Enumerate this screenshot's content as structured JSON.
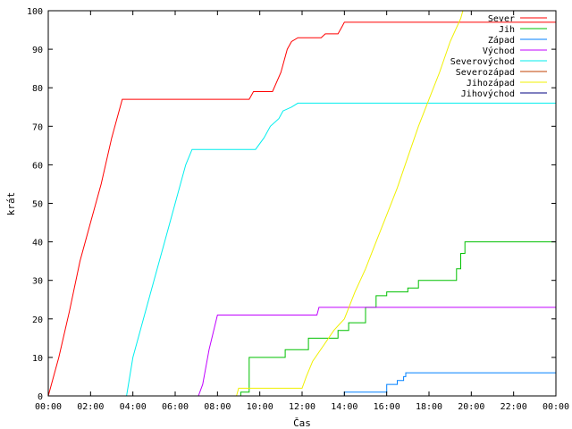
{
  "chart_data": {
    "type": "line",
    "xlabel": "Čas",
    "ylabel": "krát",
    "x_unit": "hours",
    "xlim": [
      0,
      24
    ],
    "ylim": [
      0,
      100
    ],
    "x_tick_labels": [
      "00:00",
      "02:00",
      "04:00",
      "06:00",
      "08:00",
      "10:00",
      "12:00",
      "14:00",
      "16:00",
      "18:00",
      "20:00",
      "22:00",
      "00:00"
    ],
    "y_tick_values": [
      0,
      10,
      20,
      30,
      40,
      50,
      60,
      70,
      80,
      90,
      100
    ],
    "grid": false,
    "legend_position": "top-right",
    "series": [
      {
        "name": "Sever",
        "color": "#ff0000",
        "shape": "linear",
        "points": [
          [
            0,
            0
          ],
          [
            0.5,
            10
          ],
          [
            1.0,
            22
          ],
          [
            1.5,
            35
          ],
          [
            2.0,
            45
          ],
          [
            2.5,
            55
          ],
          [
            3.0,
            67
          ],
          [
            3.5,
            77
          ],
          [
            9.5,
            77
          ],
          [
            9.7,
            79
          ],
          [
            10.6,
            79
          ],
          [
            11.0,
            84
          ],
          [
            11.3,
            90
          ],
          [
            11.5,
            92
          ],
          [
            11.8,
            93
          ],
          [
            12.0,
            93
          ],
          [
            12.9,
            93
          ],
          [
            13.1,
            94
          ],
          [
            13.7,
            94
          ],
          [
            13.9,
            96
          ],
          [
            14.0,
            97
          ],
          [
            24,
            97
          ]
        ]
      },
      {
        "name": "Jih",
        "color": "#00c000",
        "shape": "step",
        "points": [
          [
            0,
            0
          ],
          [
            9.0,
            0
          ],
          [
            9.1,
            1
          ],
          [
            9.5,
            10
          ],
          [
            11.1,
            10
          ],
          [
            11.2,
            12
          ],
          [
            12.0,
            12
          ],
          [
            12.3,
            15
          ],
          [
            13.5,
            15
          ],
          [
            13.7,
            17
          ],
          [
            14.0,
            17
          ],
          [
            14.2,
            19
          ],
          [
            14.8,
            19
          ],
          [
            15.0,
            23
          ],
          [
            15.5,
            26
          ],
          [
            16.0,
            27
          ],
          [
            16.8,
            27
          ],
          [
            17.0,
            28
          ],
          [
            17.3,
            28
          ],
          [
            17.5,
            30
          ],
          [
            19.0,
            30
          ],
          [
            19.3,
            33
          ],
          [
            19.5,
            37
          ],
          [
            19.7,
            40
          ],
          [
            24,
            40
          ]
        ]
      },
      {
        "name": "Západ",
        "color": "#0080ff",
        "shape": "step",
        "points": [
          [
            0,
            0
          ],
          [
            13.9,
            0
          ],
          [
            14.0,
            1
          ],
          [
            15.8,
            1
          ],
          [
            16.0,
            3
          ],
          [
            16.5,
            4
          ],
          [
            16.8,
            5
          ],
          [
            16.9,
            6
          ],
          [
            24,
            6
          ]
        ]
      },
      {
        "name": "Východ",
        "color": "#c000ff",
        "shape": "linear",
        "points": [
          [
            0,
            0
          ],
          [
            7.1,
            0
          ],
          [
            7.3,
            3
          ],
          [
            7.6,
            12
          ],
          [
            8.0,
            21
          ],
          [
            12.7,
            21
          ],
          [
            12.8,
            23
          ],
          [
            24,
            23
          ]
        ]
      },
      {
        "name": "Severovýchod",
        "color": "#00eeee",
        "shape": "linear",
        "points": [
          [
            0,
            0
          ],
          [
            3.7,
            0
          ],
          [
            4.0,
            10
          ],
          [
            4.5,
            20
          ],
          [
            5.0,
            30
          ],
          [
            5.5,
            40
          ],
          [
            6.0,
            50
          ],
          [
            6.5,
            60
          ],
          [
            6.8,
            64
          ],
          [
            9.8,
            64
          ],
          [
            10.2,
            67
          ],
          [
            10.5,
            70
          ],
          [
            10.9,
            72
          ],
          [
            11.1,
            74
          ],
          [
            11.5,
            75
          ],
          [
            11.8,
            76
          ],
          [
            24,
            76
          ]
        ]
      },
      {
        "name": "Severozápad",
        "color": "#c04000",
        "shape": "linear",
        "points": []
      },
      {
        "name": "Jihozápad",
        "color": "#f0f000",
        "shape": "linear",
        "points": [
          [
            0,
            0
          ],
          [
            8.9,
            0
          ],
          [
            9.0,
            2
          ],
          [
            12.0,
            2
          ],
          [
            12.2,
            5
          ],
          [
            12.5,
            9
          ],
          [
            13.0,
            13
          ],
          [
            13.5,
            17
          ],
          [
            14.0,
            20
          ],
          [
            14.5,
            27
          ],
          [
            15.0,
            33
          ],
          [
            15.5,
            40
          ],
          [
            16.0,
            47
          ],
          [
            16.5,
            54
          ],
          [
            17.0,
            62
          ],
          [
            17.5,
            70
          ],
          [
            18.0,
            77
          ],
          [
            18.5,
            84
          ],
          [
            19.0,
            92
          ],
          [
            19.5,
            98
          ],
          [
            19.6,
            100
          ]
        ]
      },
      {
        "name": "Jihovýchod",
        "color": "#000080",
        "shape": "linear",
        "points": []
      }
    ]
  }
}
